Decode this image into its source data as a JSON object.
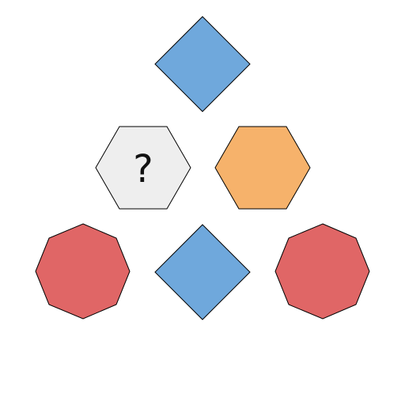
{
  "puzzle": {
    "tiles": [
      {
        "id": "top-diamond",
        "shape": "diamond",
        "fill": "#6fa8dc",
        "label": ""
      },
      {
        "id": "middle-left-hexagon",
        "shape": "hexagon",
        "fill": "#eeeeee",
        "label": "?"
      },
      {
        "id": "middle-right-hexagon",
        "shape": "hexagon",
        "fill": "#f6b26b",
        "label": ""
      },
      {
        "id": "bottom-left-octagon",
        "shape": "octagon",
        "fill": "#e06666",
        "label": ""
      },
      {
        "id": "bottom-center-diamond",
        "shape": "diamond",
        "fill": "#6fa8dc",
        "label": ""
      },
      {
        "id": "bottom-right-octagon",
        "shape": "octagon",
        "fill": "#e06666",
        "label": ""
      }
    ]
  },
  "colors": {
    "stroke": "#000000",
    "background": "#ffffff"
  }
}
